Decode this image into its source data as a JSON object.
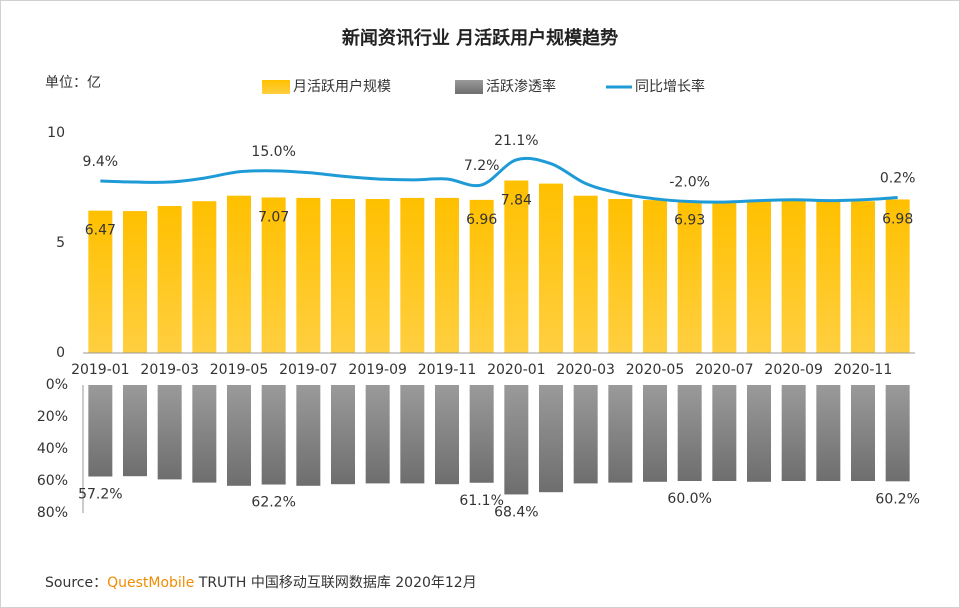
{
  "chart_data": [
    {
      "type": "bar",
      "title": "新闻资讯行业 月活跃用户规模趋势",
      "unit_label": "单位：亿",
      "categories": [
        "2019-01",
        null,
        "2019-03",
        null,
        "2019-05",
        null,
        "2019-07",
        null,
        "2019-09",
        null,
        "2019-11",
        null,
        "2020-01",
        null,
        "2020-03",
        null,
        "2020-05",
        null,
        "2020-07",
        null,
        "2020-09",
        null,
        "2020-11",
        null
      ],
      "series": [
        {
          "name": "月活跃用户规模",
          "type": "bar",
          "color": "#ffc000",
          "values": [
            6.47,
            6.45,
            6.68,
            6.9,
            7.15,
            7.07,
            7.05,
            7.0,
            7.0,
            7.05,
            7.05,
            6.96,
            7.84,
            7.7,
            7.15,
            7.0,
            6.95,
            6.93,
            6.9,
            6.95,
            6.92,
            6.9,
            6.9,
            6.98
          ],
          "value_labels": [
            "6.47",
            null,
            null,
            null,
            null,
            "7.07",
            null,
            null,
            null,
            null,
            null,
            "6.96",
            "7.84",
            null,
            null,
            null,
            null,
            "6.93",
            null,
            null,
            null,
            null,
            null,
            "6.98"
          ]
        },
        {
          "name": "同比增长率",
          "type": "line",
          "axis": "y2",
          "color": "#1e9bd7",
          "values": [
            9.4,
            8.8,
            8.8,
            11.0,
            14.5,
            15.0,
            14.0,
            12.0,
            10.5,
            10.0,
            10.5,
            7.2,
            21.1,
            19.0,
            8.0,
            2.5,
            -0.5,
            -2.0,
            -2.3,
            -1.5,
            -1.0,
            -1.5,
            -1.0,
            0.2
          ],
          "value_labels": [
            "9.4%",
            null,
            null,
            null,
            null,
            "15.0%",
            null,
            null,
            null,
            null,
            null,
            "7.2%",
            "21.1%",
            null,
            null,
            null,
            null,
            "-2.0%",
            null,
            null,
            null,
            null,
            null,
            "0.2%"
          ]
        }
      ],
      "ylim": [
        0,
        10
      ],
      "yticks": [
        0,
        5,
        10
      ],
      "y2lim": [
        -86,
        36
      ]
    },
    {
      "type": "bar",
      "series": [
        {
          "name": "活跃渗透率",
          "color": "#7f7f7f",
          "values": [
            57.2,
            57.0,
            59.0,
            61.0,
            63.0,
            62.2,
            63.0,
            62.0,
            61.5,
            61.5,
            62.0,
            61.1,
            68.4,
            67.0,
            61.5,
            61.0,
            60.5,
            60.0,
            60.0,
            60.5,
            60.0,
            60.0,
            60.0,
            60.2
          ],
          "value_labels": [
            "57.2%",
            null,
            null,
            null,
            null,
            "62.2%",
            null,
            null,
            null,
            null,
            null,
            "61.1%",
            "68.4%",
            null,
            null,
            null,
            null,
            "60.0%",
            null,
            null,
            null,
            null,
            null,
            "60.2%"
          ]
        }
      ],
      "ylim": [
        0,
        80
      ],
      "y_inverted": true,
      "yticks": [
        {
          "value": 0,
          "label": "0%"
        },
        {
          "value": 20,
          "label": "20%"
        },
        {
          "value": 40,
          "label": "40%"
        },
        {
          "value": 60,
          "label": "60%"
        },
        {
          "value": 80,
          "label": "80%"
        }
      ]
    }
  ],
  "source": {
    "prefix": "Source：",
    "brand": "QuestMobile",
    "text": " TRUTH 中国移动互联网数据库 2020年12月"
  }
}
